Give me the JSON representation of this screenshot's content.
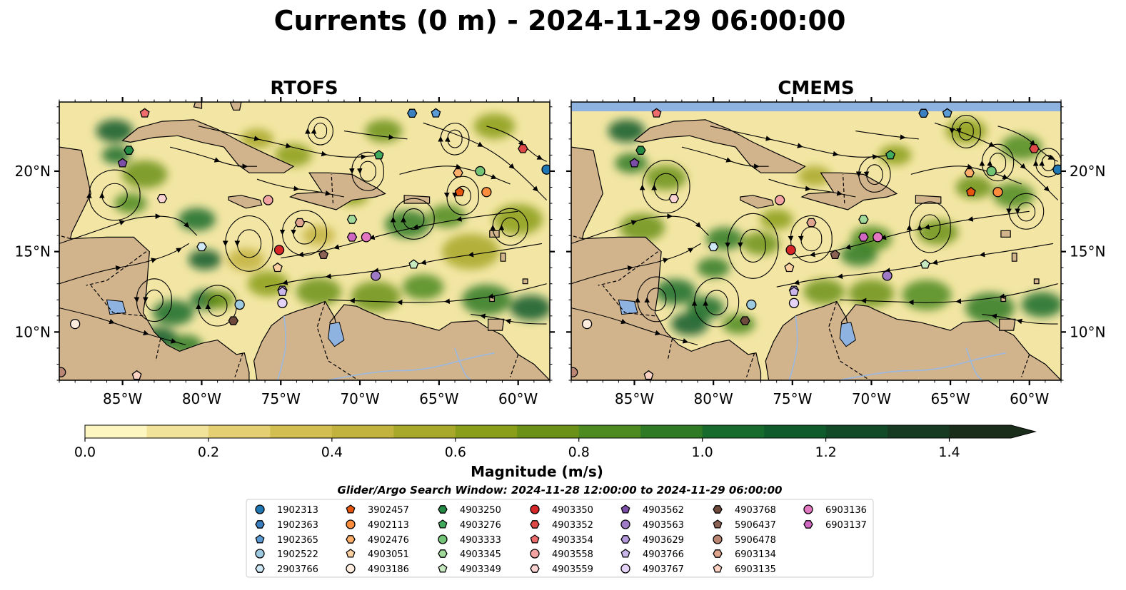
{
  "figure": {
    "title": "Currents (0 m) - 2024-11-29 06:00:00",
    "search_window": "Glider/Argo Search Window: 2024-11-28 12:00:00 to 2024-11-29 06:00:00"
  },
  "panels": [
    {
      "title": "RTOFS"
    },
    {
      "title": "CMEMS"
    }
  ],
  "chart_data": {
    "type": "heatmap",
    "title": "Currents (0 m) - 2024-11-29 06:00:00",
    "subplots": [
      "RTOFS",
      "CMEMS"
    ],
    "xlim": [
      -89,
      -58
    ],
    "ylim": [
      7,
      24.3
    ],
    "x_ticks": [
      -85,
      -80,
      -75,
      -70,
      -65,
      -60
    ],
    "x_tick_labels": [
      "85°W",
      "80°W",
      "75°W",
      "70°W",
      "65°W",
      "60°W"
    ],
    "y_ticks": [
      10,
      15,
      20
    ],
    "y_tick_labels": [
      "10°N",
      "15°N",
      "20°N"
    ],
    "colorbar": {
      "label": "Magnitude (m/s)",
      "levels": [
        0.0,
        0.1,
        0.2,
        0.3,
        0.4,
        0.5,
        0.6,
        0.7,
        0.8,
        0.9,
        1.0,
        1.1,
        1.2,
        1.3,
        1.4,
        1.5
      ],
      "tick_values": [
        0.0,
        0.2,
        0.4,
        0.6,
        0.8,
        1.0,
        1.2,
        1.4
      ],
      "tick_labels": [
        "0.0",
        "0.2",
        "0.4",
        "0.6",
        "0.8",
        "1.0",
        "1.2",
        "1.4"
      ],
      "colors": [
        "#fdf6c0",
        "#f2e39a",
        "#e4cf72",
        "#d3be52",
        "#c2b33e",
        "#a8a82a",
        "#8a9e1a",
        "#6b9216",
        "#4d8a20",
        "#2e7a25",
        "#176b2c",
        "#0f5b2c",
        "#124a28",
        "#173a22",
        "#1a2c1a"
      ],
      "extend": "max"
    },
    "floats": [
      {
        "id": "1902313",
        "marker": "circle",
        "color": "#1f77b4",
        "lon": -58.2,
        "lat": 20.1
      },
      {
        "id": "1902363",
        "marker": "hexagon",
        "color": "#3a7fc0",
        "lon": -66.7,
        "lat": 23.6
      },
      {
        "id": "1902365",
        "marker": "pentagon",
        "color": "#5b9bd5",
        "lon": -65.2,
        "lat": 23.6
      },
      {
        "id": "1902522",
        "marker": "circle",
        "color": "#9ecae1",
        "lon": -77.6,
        "lat": 11.7
      },
      {
        "id": "2903766",
        "marker": "hexagon",
        "color": "#cfe8f5",
        "lon": -80.0,
        "lat": 15.3
      },
      {
        "id": "3902457",
        "marker": "pentagon",
        "color": "#e6550d",
        "lon": -63.7,
        "lat": 18.7
      },
      {
        "id": "4902113",
        "marker": "circle",
        "color": "#fd8d3c",
        "lon": -62.0,
        "lat": 18.7
      },
      {
        "id": "4902476",
        "marker": "hexagon",
        "color": "#fdae6b",
        "lon": -63.8,
        "lat": 19.9
      },
      {
        "id": "4903051",
        "marker": "pentagon",
        "color": "#fdd0a2",
        "lon": -75.2,
        "lat": 14.0
      },
      {
        "id": "4903186",
        "marker": "circle",
        "color": "#feedde",
        "lon": -88.0,
        "lat": 10.5
      },
      {
        "id": "4903250",
        "marker": "hexagon",
        "color": "#238b45",
        "lon": -84.6,
        "lat": 21.3
      },
      {
        "id": "4903276",
        "marker": "pentagon",
        "color": "#41ab5d",
        "lon": -68.8,
        "lat": 21.0
      },
      {
        "id": "4903333",
        "marker": "circle",
        "color": "#74c476",
        "lon": -62.4,
        "lat": 20.0
      },
      {
        "id": "4903345",
        "marker": "hexagon",
        "color": "#a1d99b",
        "lon": -70.5,
        "lat": 17.0
      },
      {
        "id": "4903349",
        "marker": "pentagon",
        "color": "#c7e9c0",
        "lon": -66.6,
        "lat": 14.2
      },
      {
        "id": "4903350",
        "marker": "circle",
        "color": "#d62728",
        "lon": -75.1,
        "lat": 15.1
      },
      {
        "id": "4903352",
        "marker": "hexagon",
        "color": "#e04848",
        "lon": -59.7,
        "lat": 21.4
      },
      {
        "id": "4903354",
        "marker": "pentagon",
        "color": "#ef6c6c",
        "lon": -83.6,
        "lat": 23.6
      },
      {
        "id": "4903558",
        "marker": "circle",
        "color": "#f4a3a3",
        "lon": -75.8,
        "lat": 18.2
      },
      {
        "id": "4903559",
        "marker": "hexagon",
        "color": "#fbd3d3",
        "lon": -82.5,
        "lat": 18.3
      },
      {
        "id": "4903562",
        "marker": "pentagon",
        "color": "#7b4fa8",
        "lon": -85.0,
        "lat": 20.5
      },
      {
        "id": "4903563",
        "marker": "circle",
        "color": "#9e7ac6",
        "lon": -69.0,
        "lat": 13.5
      },
      {
        "id": "4903629",
        "marker": "hexagon",
        "color": "#b499dc",
        "lon": -74.9,
        "lat": 12.6
      },
      {
        "id": "4903766",
        "marker": "pentagon",
        "color": "#cbb6ea",
        "lon": -74.9,
        "lat": 12.5
      },
      {
        "id": "4903767",
        "marker": "circle",
        "color": "#e5d4f7",
        "lon": -74.9,
        "lat": 11.8
      },
      {
        "id": "4903768",
        "marker": "hexagon",
        "color": "#6e4a3d",
        "lon": -78.0,
        "lat": 10.7
      },
      {
        "id": "5906437",
        "marker": "pentagon",
        "color": "#8c6255",
        "lon": -72.3,
        "lat": 14.8
      },
      {
        "id": "5906478",
        "marker": "circle",
        "color": "#bb8573",
        "lon": -88.9,
        "lat": 7.5
      },
      {
        "id": "6903134",
        "marker": "hexagon",
        "color": "#e0a58e",
        "lon": -73.8,
        "lat": 16.8
      },
      {
        "id": "6903135",
        "marker": "pentagon",
        "color": "#fcd2c3",
        "lon": -84.1,
        "lat": 7.3
      },
      {
        "id": "6903136",
        "marker": "circle",
        "color": "#e377c2",
        "lon": -69.6,
        "lat": 15.9
      },
      {
        "id": "6903137",
        "marker": "hexagon",
        "color": "#d067c2",
        "lon": -70.5,
        "lat": 15.9
      }
    ]
  },
  "colors": {
    "land": "#d2b48c",
    "lake": "#8fb3e0",
    "river": "#9fb8d9",
    "no_data": "#8fb3e0",
    "ocean_base": "#f3e6a4"
  }
}
